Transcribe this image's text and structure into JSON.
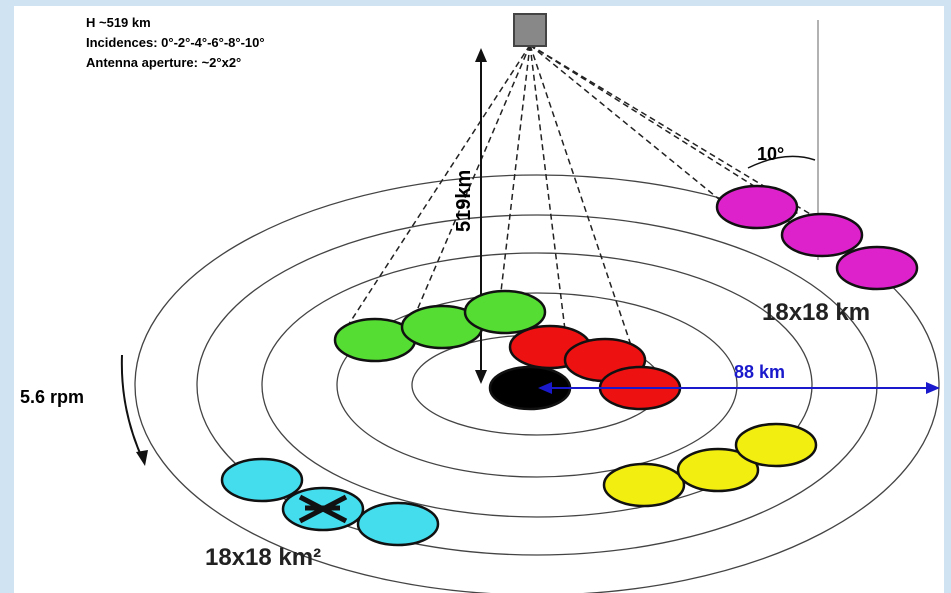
{
  "info": {
    "altitude": "H ~519 km",
    "incidences": "Incidences: 0°-2°-4°-6°-8°-10°",
    "aperture": "Antenna aperture: ~2°x2°"
  },
  "labels": {
    "height": "519km",
    "angle": "10°",
    "footprint_top": "18x18 km",
    "radius": "88 km",
    "rotation": "5.6 rpm",
    "footprint_bottom": "18x18 km²"
  }
}
